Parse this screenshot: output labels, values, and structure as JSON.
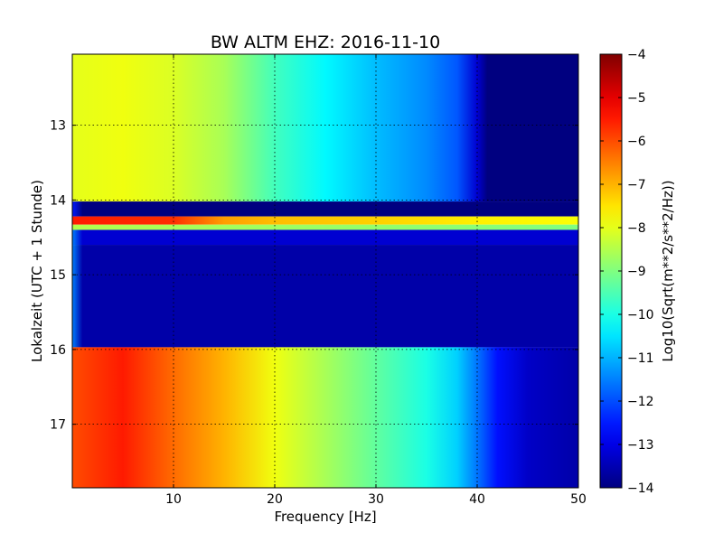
{
  "chart_data": {
    "type": "heatmap",
    "title": "BW ALTM EHZ: 2016-11-10",
    "xlabel": "Frequency [Hz]",
    "ylabel": "Lokalzeit (UTC + 1 Stunde)",
    "xlim": [
      0,
      50
    ],
    "ylim": [
      17.85,
      12.05
    ],
    "x_ticks": [
      10,
      20,
      30,
      40,
      50
    ],
    "x_tick_labels": [
      "10",
      "20",
      "30",
      "40",
      "50"
    ],
    "y_ticks": [
      13,
      14,
      15,
      16,
      17
    ],
    "y_tick_labels": [
      "13",
      "14",
      "15",
      "16",
      "17"
    ],
    "grid": true,
    "colormap": "jet",
    "colorbar": {
      "label": "Log10(Sqrt(m**2/s**2/Hz))",
      "range": [
        -14,
        -4
      ],
      "ticks": [
        -14,
        -13,
        -12,
        -11,
        -10,
        -9,
        -8,
        -7,
        -6,
        -5,
        -4
      ],
      "tick_labels": [
        "−14",
        "−13",
        "−12",
        "−11",
        "−10",
        "−9",
        "−8",
        "−7",
        "−6",
        "−5",
        "−4"
      ]
    },
    "bands": [
      {
        "time_start": 12.05,
        "time_end": 14.02,
        "profile": [
          [
            0,
            -8.0
          ],
          [
            5,
            -7.9
          ],
          [
            10,
            -8.1
          ],
          [
            15,
            -8.6
          ],
          [
            20,
            -9.6
          ],
          [
            25,
            -10.3
          ],
          [
            30,
            -10.9
          ],
          [
            35,
            -11.4
          ],
          [
            38,
            -11.9
          ],
          [
            40,
            -13.2
          ],
          [
            41,
            -14
          ],
          [
            50,
            -14
          ]
        ]
      },
      {
        "time_start": 14.02,
        "time_end": 14.22,
        "profile": [
          [
            0,
            -12.5
          ],
          [
            1,
            -14
          ],
          [
            50,
            -14
          ]
        ]
      },
      {
        "time_start": 14.22,
        "time_end": 14.33,
        "profile": [
          [
            0,
            -5.5
          ],
          [
            10,
            -5.7
          ],
          [
            15,
            -6.8
          ],
          [
            20,
            -7.1
          ],
          [
            30,
            -7.3
          ],
          [
            40,
            -7.6
          ],
          [
            50,
            -7.8
          ]
        ]
      },
      {
        "time_start": 14.33,
        "time_end": 14.4,
        "profile": [
          [
            0,
            -8.5
          ],
          [
            30,
            -8.8
          ],
          [
            50,
            -9.0
          ]
        ]
      },
      {
        "time_start": 14.4,
        "time_end": 14.6,
        "profile": [
          [
            0,
            -11.5
          ],
          [
            1,
            -13.2
          ],
          [
            50,
            -13.2
          ]
        ]
      },
      {
        "time_start": 14.6,
        "time_end": 15.97,
        "profile": [
          [
            0,
            -11.5
          ],
          [
            1,
            -13.6
          ],
          [
            50,
            -13.6
          ]
        ]
      },
      {
        "time_start": 15.97,
        "time_end": 17.85,
        "profile": [
          [
            0,
            -6.0
          ],
          [
            5,
            -5.5
          ],
          [
            10,
            -6.3
          ],
          [
            15,
            -7.0
          ],
          [
            20,
            -7.9
          ],
          [
            25,
            -8.6
          ],
          [
            30,
            -9.3
          ],
          [
            35,
            -10.0
          ],
          [
            38,
            -10.7
          ],
          [
            40,
            -11.6
          ],
          [
            42,
            -12.6
          ],
          [
            45,
            -13.3
          ],
          [
            50,
            -13.6
          ]
        ]
      }
    ]
  }
}
